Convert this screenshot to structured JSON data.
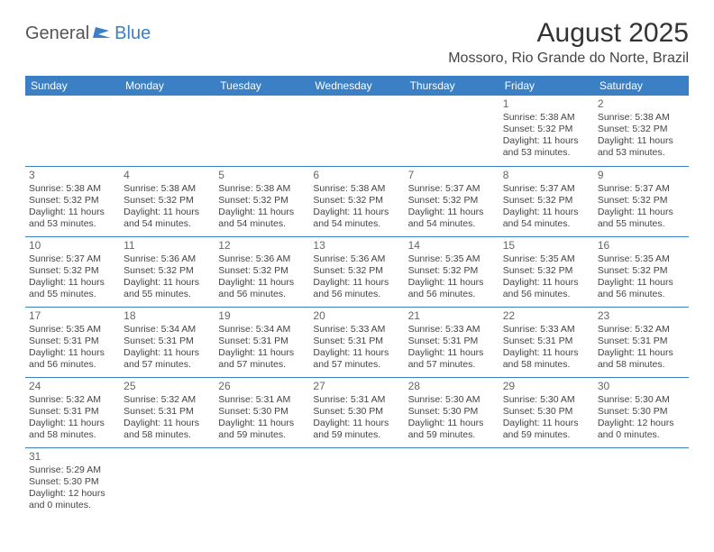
{
  "logo": {
    "part1": "General",
    "part2": "Blue"
  },
  "title": "August 2025",
  "location": "Mossoro, Rio Grande do Norte, Brazil",
  "colors": {
    "header_bg": "#3b7fc4",
    "header_text": "#ffffff",
    "border": "#3b7fc4"
  },
  "daynames": [
    "Sunday",
    "Monday",
    "Tuesday",
    "Wednesday",
    "Thursday",
    "Friday",
    "Saturday"
  ],
  "weeks": [
    [
      null,
      null,
      null,
      null,
      null,
      {
        "n": "1",
        "sr": "5:38 AM",
        "ss": "5:32 PM",
        "dl": "11 hours and 53 minutes."
      },
      {
        "n": "2",
        "sr": "5:38 AM",
        "ss": "5:32 PM",
        "dl": "11 hours and 53 minutes."
      }
    ],
    [
      {
        "n": "3",
        "sr": "5:38 AM",
        "ss": "5:32 PM",
        "dl": "11 hours and 53 minutes."
      },
      {
        "n": "4",
        "sr": "5:38 AM",
        "ss": "5:32 PM",
        "dl": "11 hours and 54 minutes."
      },
      {
        "n": "5",
        "sr": "5:38 AM",
        "ss": "5:32 PM",
        "dl": "11 hours and 54 minutes."
      },
      {
        "n": "6",
        "sr": "5:38 AM",
        "ss": "5:32 PM",
        "dl": "11 hours and 54 minutes."
      },
      {
        "n": "7",
        "sr": "5:37 AM",
        "ss": "5:32 PM",
        "dl": "11 hours and 54 minutes."
      },
      {
        "n": "8",
        "sr": "5:37 AM",
        "ss": "5:32 PM",
        "dl": "11 hours and 54 minutes."
      },
      {
        "n": "9",
        "sr": "5:37 AM",
        "ss": "5:32 PM",
        "dl": "11 hours and 55 minutes."
      }
    ],
    [
      {
        "n": "10",
        "sr": "5:37 AM",
        "ss": "5:32 PM",
        "dl": "11 hours and 55 minutes."
      },
      {
        "n": "11",
        "sr": "5:36 AM",
        "ss": "5:32 PM",
        "dl": "11 hours and 55 minutes."
      },
      {
        "n": "12",
        "sr": "5:36 AM",
        "ss": "5:32 PM",
        "dl": "11 hours and 56 minutes."
      },
      {
        "n": "13",
        "sr": "5:36 AM",
        "ss": "5:32 PM",
        "dl": "11 hours and 56 minutes."
      },
      {
        "n": "14",
        "sr": "5:35 AM",
        "ss": "5:32 PM",
        "dl": "11 hours and 56 minutes."
      },
      {
        "n": "15",
        "sr": "5:35 AM",
        "ss": "5:32 PM",
        "dl": "11 hours and 56 minutes."
      },
      {
        "n": "16",
        "sr": "5:35 AM",
        "ss": "5:32 PM",
        "dl": "11 hours and 56 minutes."
      }
    ],
    [
      {
        "n": "17",
        "sr": "5:35 AM",
        "ss": "5:31 PM",
        "dl": "11 hours and 56 minutes."
      },
      {
        "n": "18",
        "sr": "5:34 AM",
        "ss": "5:31 PM",
        "dl": "11 hours and 57 minutes."
      },
      {
        "n": "19",
        "sr": "5:34 AM",
        "ss": "5:31 PM",
        "dl": "11 hours and 57 minutes."
      },
      {
        "n": "20",
        "sr": "5:33 AM",
        "ss": "5:31 PM",
        "dl": "11 hours and 57 minutes."
      },
      {
        "n": "21",
        "sr": "5:33 AM",
        "ss": "5:31 PM",
        "dl": "11 hours and 57 minutes."
      },
      {
        "n": "22",
        "sr": "5:33 AM",
        "ss": "5:31 PM",
        "dl": "11 hours and 58 minutes."
      },
      {
        "n": "23",
        "sr": "5:32 AM",
        "ss": "5:31 PM",
        "dl": "11 hours and 58 minutes."
      }
    ],
    [
      {
        "n": "24",
        "sr": "5:32 AM",
        "ss": "5:31 PM",
        "dl": "11 hours and 58 minutes."
      },
      {
        "n": "25",
        "sr": "5:32 AM",
        "ss": "5:31 PM",
        "dl": "11 hours and 58 minutes."
      },
      {
        "n": "26",
        "sr": "5:31 AM",
        "ss": "5:30 PM",
        "dl": "11 hours and 59 minutes."
      },
      {
        "n": "27",
        "sr": "5:31 AM",
        "ss": "5:30 PM",
        "dl": "11 hours and 59 minutes."
      },
      {
        "n": "28",
        "sr": "5:30 AM",
        "ss": "5:30 PM",
        "dl": "11 hours and 59 minutes."
      },
      {
        "n": "29",
        "sr": "5:30 AM",
        "ss": "5:30 PM",
        "dl": "11 hours and 59 minutes."
      },
      {
        "n": "30",
        "sr": "5:30 AM",
        "ss": "5:30 PM",
        "dl": "12 hours and 0 minutes."
      }
    ],
    [
      {
        "n": "31",
        "sr": "5:29 AM",
        "ss": "5:30 PM",
        "dl": "12 hours and 0 minutes."
      },
      null,
      null,
      null,
      null,
      null,
      null
    ]
  ],
  "labels": {
    "sunrise": "Sunrise:",
    "sunset": "Sunset:",
    "daylight": "Daylight:"
  }
}
